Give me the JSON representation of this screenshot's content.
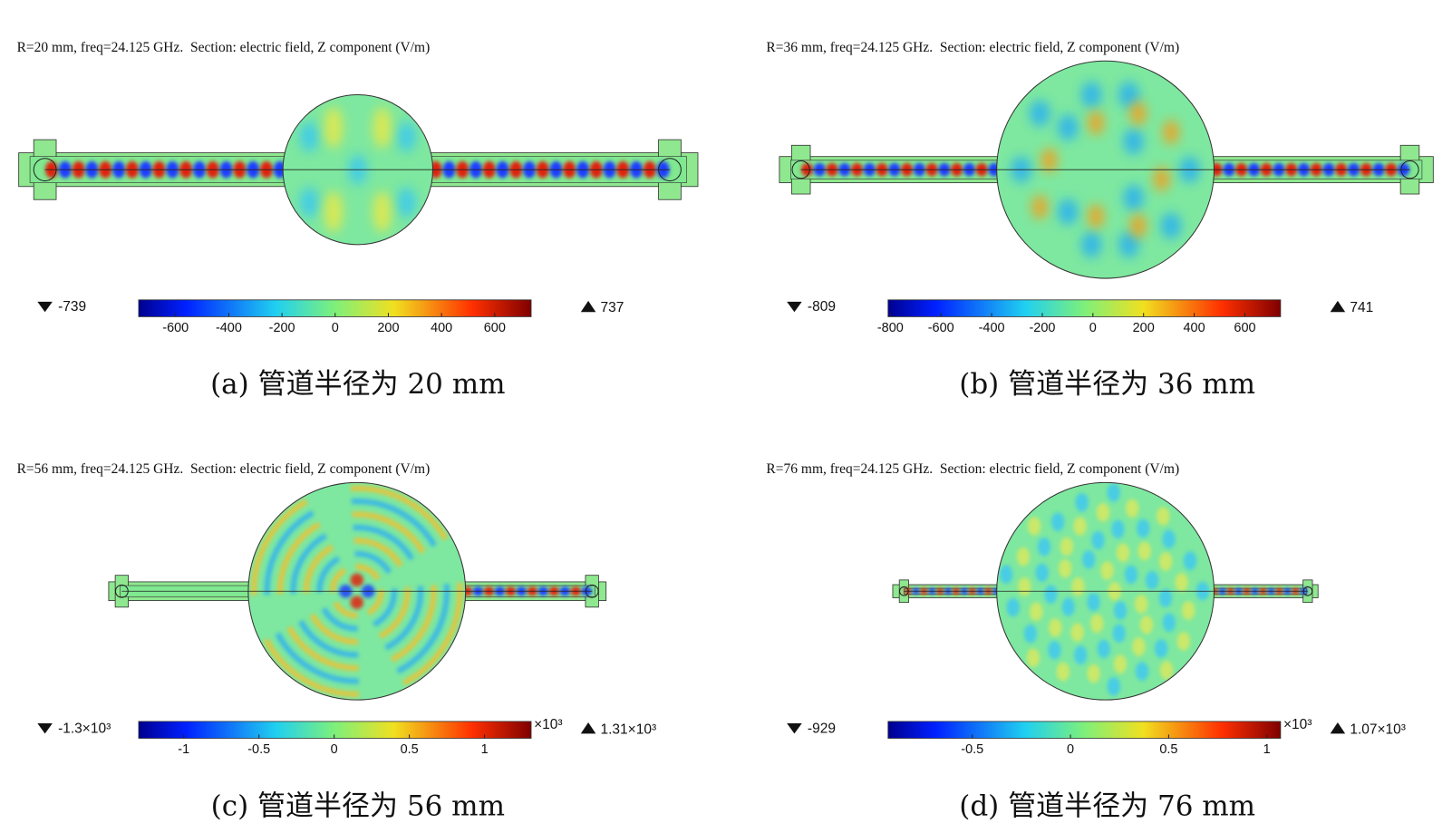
{
  "panels": [
    {
      "title": "R=20 mm, freq=24.125 GHz.  Section: electric field, Z component (V/m)",
      "min": -739,
      "max": 737,
      "ticks": [
        -600,
        -400,
        -200,
        0,
        200,
        400,
        600
      ],
      "caption": "(a) 管道半径为 20 mm"
    },
    {
      "title": "R=36 mm, freq=24.125 GHz.  Section: electric field, Z component (V/m)",
      "min": -809,
      "max": 741,
      "ticks": [
        -800,
        -600,
        -400,
        -200,
        0,
        200,
        400,
        600
      ],
      "caption": "(b) 管道半径为 36 mm"
    },
    {
      "title": "R=56 mm, freq=24.125 GHz.  Section: electric field, Z component (V/m)",
      "min": {
        "value": -1.3,
        "label": "-1.3×10³"
      },
      "max": {
        "value": 1.31,
        "label": "1.31×10³"
      },
      "multiplier": "×10³",
      "ticks": [
        -1,
        -0.5,
        0,
        0.5,
        1
      ],
      "caption": "(c) 管道半径为 56 mm"
    },
    {
      "title": "R=76 mm, freq=24.125 GHz.  Section: electric field, Z component (V/m)",
      "min": {
        "value": -0.929,
        "label": "-929"
      },
      "max": {
        "value": 1.07,
        "label": "1.07×10³"
      },
      "multiplier": "×10³",
      "ticks": [
        -0.5,
        0,
        0.5,
        1
      ],
      "caption": "(d) 管道半径为 76 mm"
    }
  ]
}
